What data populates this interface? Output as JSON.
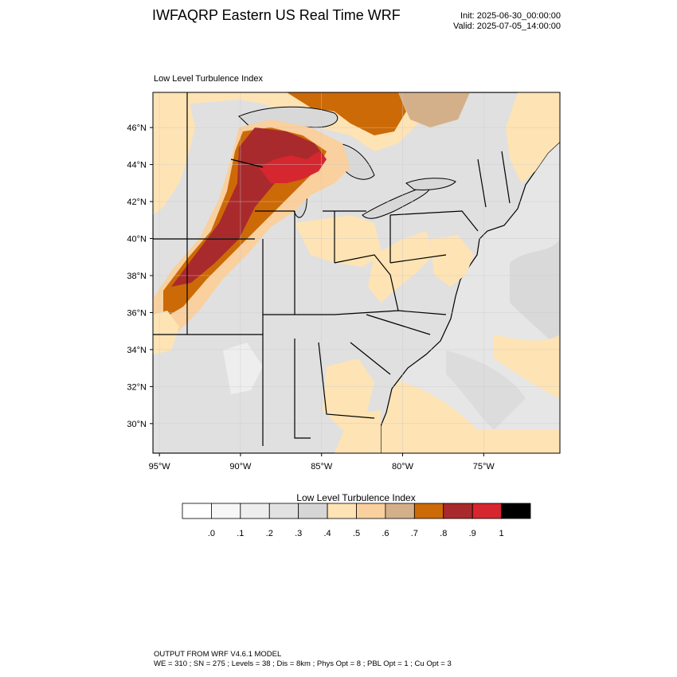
{
  "header": {
    "title": "IWFAQRP Eastern US Real Time WRF",
    "init": "Init: 2025-06-30_00:00:00",
    "valid": "Valid: 2025-07-05_14:00:00"
  },
  "map": {
    "field_title": "Low Level Turbulence Index",
    "lat_range": [
      28.4,
      47.9
    ],
    "lon_range": [
      -95.4,
      -70.3
    ],
    "lat_ticks": [
      {
        "value": 30,
        "label": "30°N"
      },
      {
        "value": 32,
        "label": "32°N"
      },
      {
        "value": 34,
        "label": "34°N"
      },
      {
        "value": 36,
        "label": "36°N"
      },
      {
        "value": 38,
        "label": "38°N"
      },
      {
        "value": 40,
        "label": "40°N"
      },
      {
        "value": 42,
        "label": "42°N"
      },
      {
        "value": 44,
        "label": "44°N"
      },
      {
        "value": 46,
        "label": "46°N"
      }
    ],
    "lon_ticks": [
      {
        "value": -95,
        "label": "95°W"
      },
      {
        "value": -90,
        "label": "90°W"
      },
      {
        "value": -85,
        "label": "85°W"
      },
      {
        "value": -80,
        "label": "80°W"
      },
      {
        "value": -75,
        "label": "75°W"
      }
    ],
    "colors": {
      "land_low": "#e0e0e0",
      "ocean": "#e6e6e6",
      "lake": "#d8d8d8",
      "band_05": "#fee3b4",
      "band_06": "#f9d09e",
      "band_07": "#d4b08a",
      "band_08": "#cc6a07",
      "band_09": "#a92a2c",
      "band_10": "#d62630",
      "border": "#000000"
    }
  },
  "legend": {
    "title": "Low Level Turbulence Index",
    "colors": [
      "#ffffff",
      "#f7f7f7",
      "#eeeeee",
      "#e2e2e2",
      "#d6d6d6",
      "#fee3b4",
      "#f9d09e",
      "#d4b08a",
      "#cc6a07",
      "#a92a2c",
      "#d62630",
      "#000000"
    ],
    "labels": [
      ".0",
      ".1",
      ".2",
      ".3",
      ".4",
      ".5",
      ".6",
      ".7",
      ".8",
      ".9",
      "1"
    ]
  },
  "footer": {
    "line1": "OUTPUT FROM WRF V4.6.1 MODEL",
    "line2": "WE = 310 ; SN = 275 ; Levels = 38 ; Dis = 8km ; Phys Opt = 8 ; PBL Opt = 1 ; Cu Opt = 3"
  }
}
